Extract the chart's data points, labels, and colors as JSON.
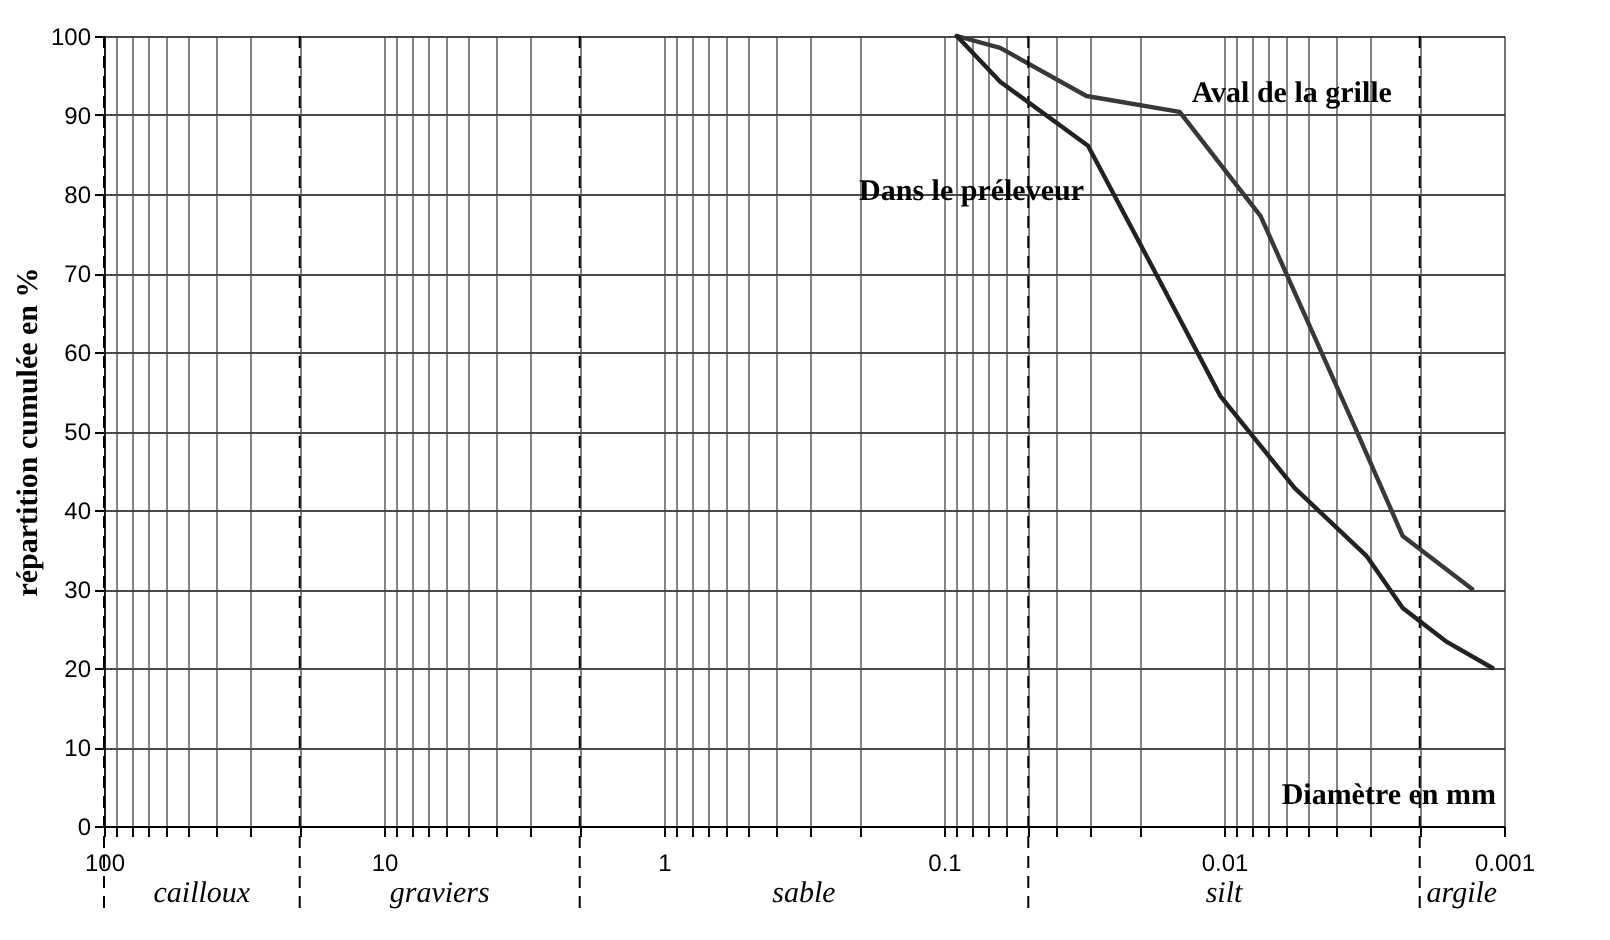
{
  "chart_data": {
    "type": "line",
    "xlabel": "Diamètre en mm",
    "ylabel": "répartition cumulée en %",
    "log": "x",
    "grid": true,
    "marker": "none",
    "line_style": "solid",
    "xlim": [
      100,
      0.001
    ],
    "ylim": [
      0,
      100
    ],
    "xticks": [
      100,
      {
        "value": 90,
        "label": null
      },
      {
        "value": 80,
        "label": null
      },
      {
        "value": 70,
        "label": null
      },
      {
        "value": 60,
        "label": null
      },
      {
        "value": 50,
        "label": null
      },
      {
        "value": 40,
        "label": null
      },
      {
        "value": 30,
        "label": null
      },
      {
        "value": 20,
        "label": null
      },
      10,
      {
        "value": 9,
        "label": null
      },
      {
        "value": 8,
        "label": null
      },
      {
        "value": 7,
        "label": null
      },
      {
        "value": 6,
        "label": null
      },
      {
        "value": 5,
        "label": null
      },
      {
        "value": 4,
        "label": null
      },
      {
        "value": 3,
        "label": null
      },
      {
        "value": 2,
        "label": null
      },
      1,
      {
        "value": 0.9,
        "label": null
      },
      {
        "value": 0.8,
        "label": null
      },
      {
        "value": 0.7,
        "label": null
      },
      {
        "value": 0.6,
        "label": null
      },
      {
        "value": 0.5,
        "label": null
      },
      {
        "value": 0.4,
        "label": null
      },
      {
        "value": 0.3,
        "label": null
      },
      {
        "value": 0.2,
        "label": null
      },
      0.1,
      {
        "value": 0.09,
        "label": null
      },
      {
        "value": 0.08,
        "label": null
      },
      {
        "value": 0.07,
        "label": null
      },
      {
        "value": 0.06,
        "label": null
      },
      {
        "value": 0.05,
        "label": null
      },
      {
        "value": 0.04,
        "label": null
      },
      {
        "value": 0.03,
        "label": null
      },
      {
        "value": 0.02,
        "label": null
      },
      0.01,
      {
        "value": 0.009,
        "label": null
      },
      {
        "value": 0.008,
        "label": null
      },
      {
        "value": 0.007,
        "label": null
      },
      {
        "value": 0.006,
        "label": null
      },
      {
        "value": 0.005,
        "label": null
      },
      {
        "value": 0.004,
        "label": null
      },
      {
        "value": 0.003,
        "label": null
      },
      {
        "value": 0.002,
        "label": null
      },
      0.001
    ],
    "yticks": [
      0,
      10,
      20,
      30,
      40,
      50,
      60,
      70,
      80,
      90,
      100
    ],
    "series": [
      {
        "name": "Aval de la grille",
        "color": "#222222",
        "x": [
          0.09,
          0.063,
          0.031,
          0.0144,
          0.0074,
          0.0034,
          0.0023,
          0.0013
        ],
        "values": [
          100,
          98.5,
          92.4,
          90.4,
          77.2,
          50.4,
          36.7,
          30
        ]
      },
      {
        "name": "Dans le préleveur",
        "color": "#222222",
        "x": [
          0.09,
          0.063,
          0.0306,
          0.0169,
          0.0103,
          0.0056,
          0.0031,
          0.0023,
          0.0016,
          0.0011
        ],
        "values": [
          100,
          94.2,
          86.1,
          68.9,
          54.4,
          42.8,
          34.2,
          27.6,
          23.3,
          20
        ]
      }
    ],
    "bands": [
      {
        "axis": "x",
        "from": 100,
        "to": 20,
        "label": "cailloux",
        "color": "#ffffff"
      },
      {
        "axis": "x",
        "from": 20,
        "to": 2,
        "label": "graviers",
        "color": "#ffffff"
      },
      {
        "axis": "x",
        "from": 2,
        "to": 0.05,
        "label": "sable",
        "color": "#ffffff"
      },
      {
        "axis": "x",
        "from": 0.05,
        "to": 0.002,
        "label": "silt",
        "color": "#ffffff"
      },
      {
        "axis": "x",
        "from": 0.002,
        "to": 0.001,
        "label": "argile",
        "color": "#ffffff"
      }
    ]
  }
}
